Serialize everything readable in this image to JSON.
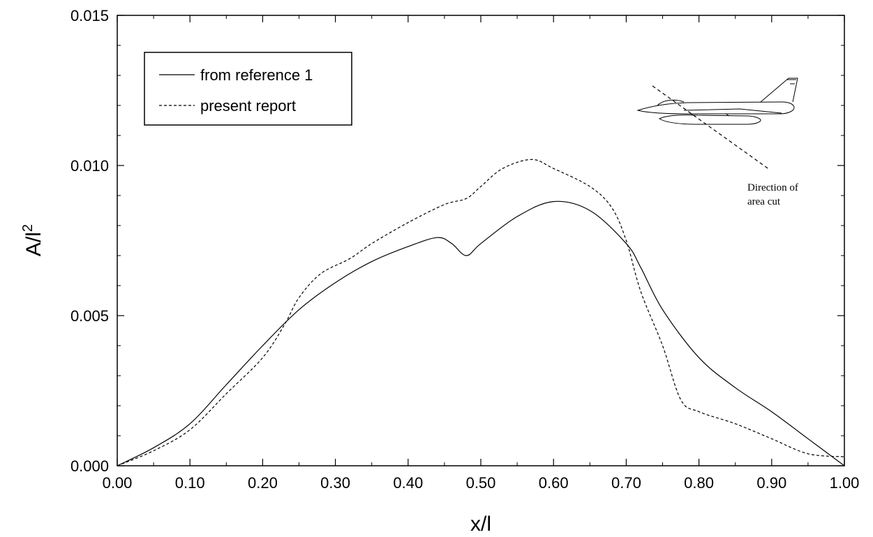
{
  "chart_data": {
    "type": "line",
    "title": "",
    "xlabel": "x/l",
    "ylabel_base": "A/l",
    "ylabel_sup": "2",
    "xlim": [
      0.0,
      1.0
    ],
    "ylim": [
      0.0,
      0.015
    ],
    "x_ticks": [
      "0.00",
      "0.10",
      "0.20",
      "0.30",
      "0.40",
      "0.50",
      "0.60",
      "0.70",
      "0.80",
      "0.90",
      "1.00"
    ],
    "y_ticks": [
      "0.000",
      "0.005",
      "0.010",
      "0.015"
    ],
    "grid": false,
    "legend_position": "top-left",
    "series": [
      {
        "name": "from reference 1",
        "style": "solid",
        "x": [
          0.0,
          0.05,
          0.1,
          0.15,
          0.2,
          0.25,
          0.3,
          0.35,
          0.4,
          0.44,
          0.46,
          0.48,
          0.5,
          0.55,
          0.6,
          0.65,
          0.7,
          0.72,
          0.75,
          0.8,
          0.85,
          0.9,
          0.95,
          1.0
        ],
        "y": [
          0.0,
          0.0006,
          0.0014,
          0.0027,
          0.004,
          0.0052,
          0.0061,
          0.0068,
          0.0073,
          0.0076,
          0.0074,
          0.007,
          0.0074,
          0.0083,
          0.0088,
          0.0085,
          0.0074,
          0.0066,
          0.0052,
          0.0036,
          0.0026,
          0.0018,
          0.0009,
          0.0
        ]
      },
      {
        "name": "present report",
        "style": "dashed",
        "x": [
          0.0,
          0.05,
          0.1,
          0.15,
          0.2,
          0.23,
          0.25,
          0.28,
          0.32,
          0.35,
          0.4,
          0.45,
          0.48,
          0.5,
          0.53,
          0.57,
          0.6,
          0.65,
          0.68,
          0.7,
          0.72,
          0.75,
          0.775,
          0.8,
          0.85,
          0.9,
          0.95,
          1.0
        ],
        "y": [
          0.0,
          0.0005,
          0.0012,
          0.0024,
          0.0036,
          0.0047,
          0.0056,
          0.0064,
          0.0069,
          0.0074,
          0.0081,
          0.0087,
          0.0089,
          0.0093,
          0.0099,
          0.0102,
          0.0099,
          0.0093,
          0.0086,
          0.0075,
          0.0058,
          0.004,
          0.0022,
          0.0018,
          0.0014,
          0.0009,
          0.0004,
          0.0003
        ]
      }
    ],
    "annotation": {
      "line1": "Direction of",
      "line2": "area cut"
    }
  }
}
